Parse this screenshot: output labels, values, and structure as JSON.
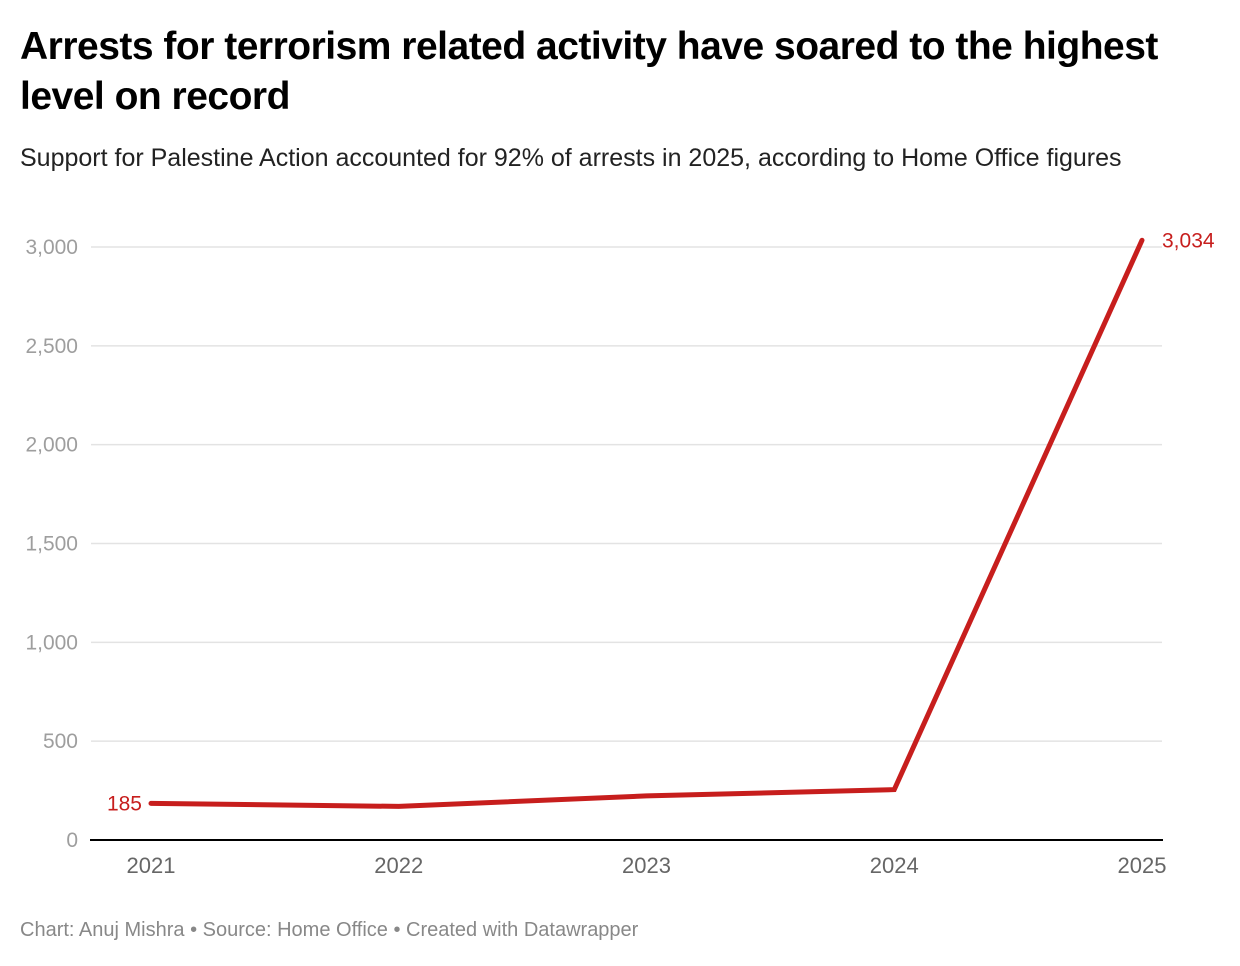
{
  "header": {
    "title": "Arrests for terrorism related activity have soared to the highest level on record",
    "subtitle": "Support for Palestine Action accounted for 92% of arrests in 2025, according to Home Office figures"
  },
  "footer": {
    "text": "Chart: Anuj Mishra • Source: Home Office • Created with Datawrapper"
  },
  "colors": {
    "line": "#c71e1d",
    "grid": "#e3e3e3",
    "axis": "#000000",
    "tick_text": "#9e9e9e"
  },
  "chart_data": {
    "type": "line",
    "title": "Arrests for terrorism related activity have soared to the highest level on record",
    "subtitle": "Support for Palestine Action accounted for 92% of arrests in 2025, according to Home Office figures",
    "xlabel": "",
    "ylabel": "",
    "x": [
      "2021",
      "2022",
      "2023",
      "2024",
      "2025"
    ],
    "series": [
      {
        "name": "Arrests for terrorism related activity",
        "values": [
          185,
          170,
          223,
          255,
          3034
        ]
      }
    ],
    "ylim": [
      0,
      3000
    ],
    "yticks": [
      0,
      500,
      1000,
      1500,
      2000,
      2500,
      3000
    ],
    "ytick_labels": [
      "0",
      "500",
      "1,000",
      "1,500",
      "2,000",
      "2,500",
      "3,000"
    ],
    "grid": true,
    "legend": "none",
    "annotations": [
      {
        "x": "2021",
        "value": 185,
        "label": "185",
        "position": "left"
      },
      {
        "x": "2025",
        "value": 3034,
        "label": "3,034",
        "position": "right"
      }
    ]
  }
}
